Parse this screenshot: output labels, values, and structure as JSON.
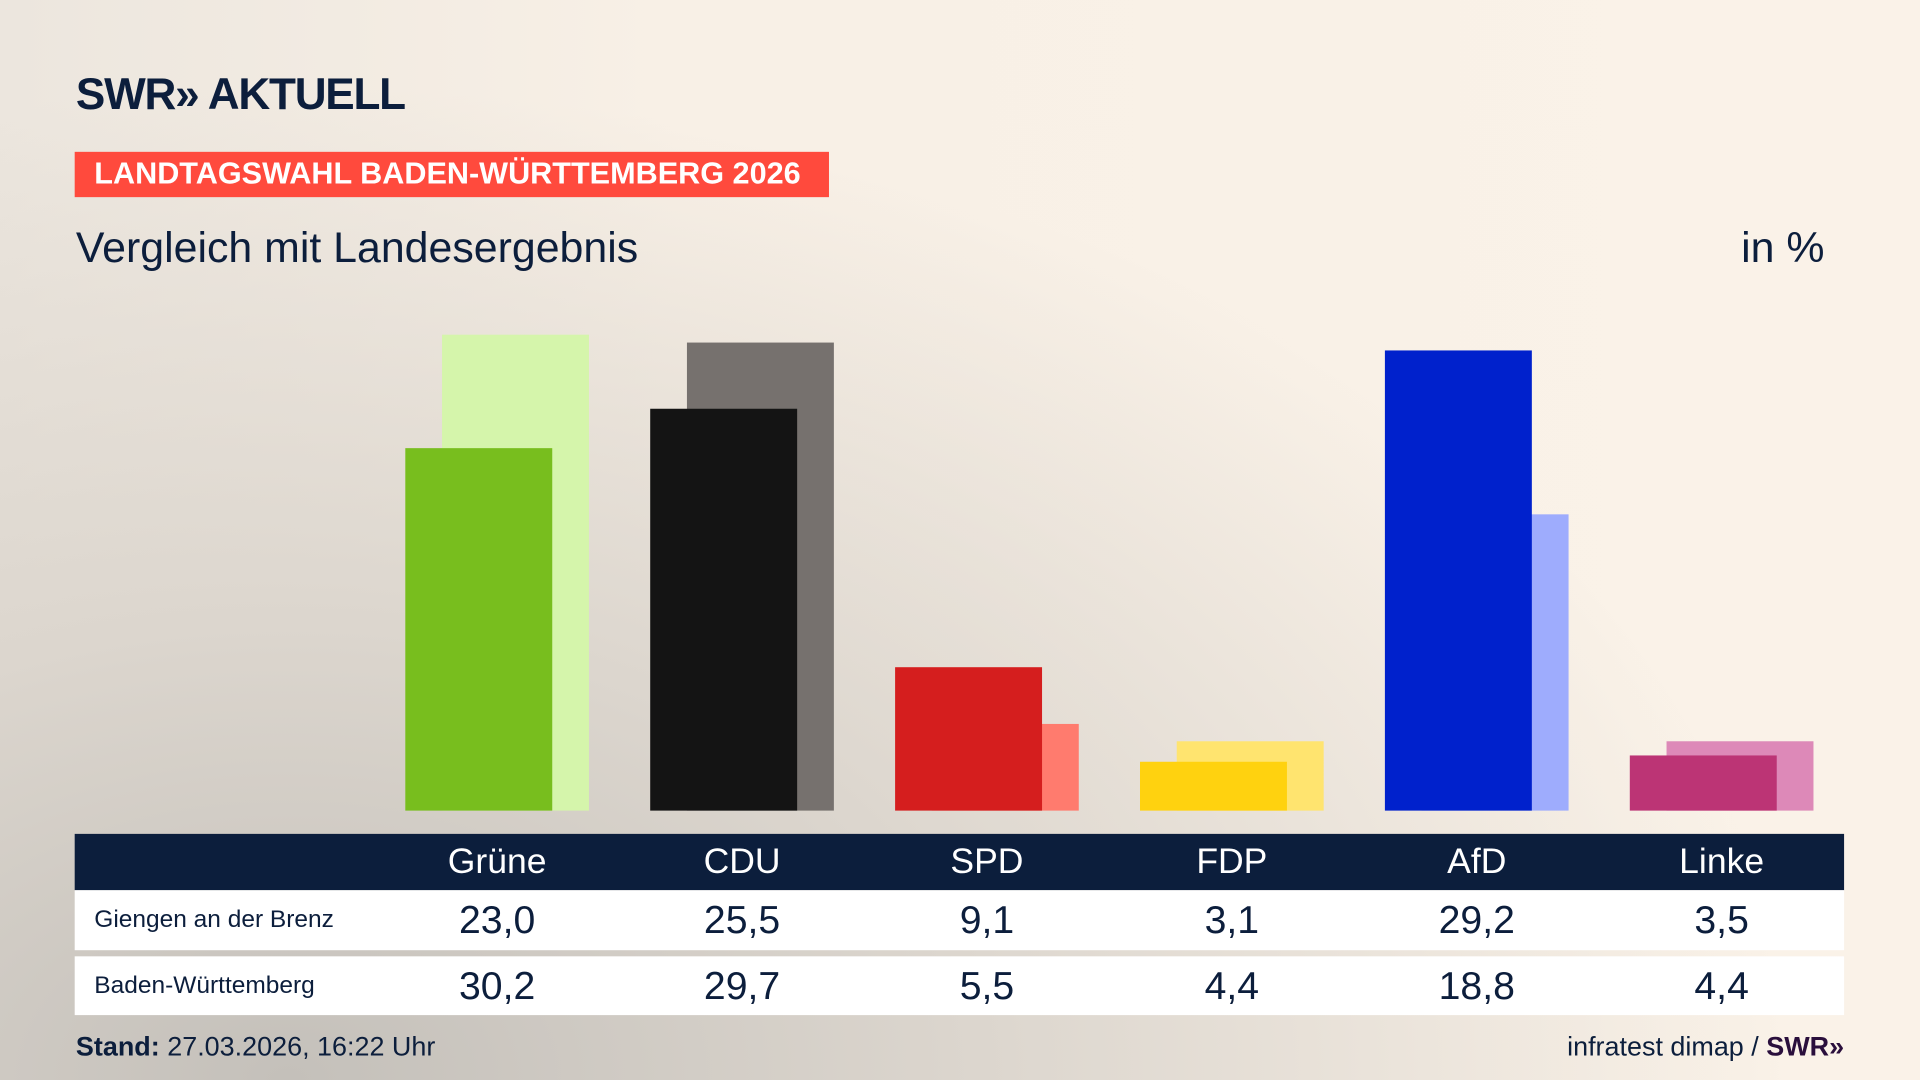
{
  "header": {
    "logo": "SWR» AKTUELL",
    "badge": "LANDTAGSWAHL BADEN-WÜRTTEMBERG 2026",
    "subtitle": "Vergleich mit Landesergebnis",
    "unit": "in %"
  },
  "chart_data": {
    "type": "bar",
    "categories": [
      "Grüne",
      "CDU",
      "SPD",
      "FDP",
      "AfD",
      "Linke"
    ],
    "series": [
      {
        "name": "Giengen an der Brenz",
        "values": [
          23.0,
          25.5,
          9.1,
          3.1,
          29.2,
          3.5
        ],
        "display": [
          "23,0",
          "25,5",
          "9,1",
          "3,1",
          "29,2",
          "3,5"
        ],
        "colors": [
          "#78be1e",
          "#141414",
          "#d51e1e",
          "#ffd20f",
          "#0021cc",
          "#bc3475"
        ]
      },
      {
        "name": "Baden-Württemberg",
        "values": [
          30.2,
          29.7,
          5.5,
          4.4,
          18.8,
          4.4
        ],
        "display": [
          "30,2",
          "29,7",
          "5,5",
          "4,4",
          "18,8",
          "4,4"
        ],
        "colors": [
          "#d5f5ab",
          "#76716e",
          "#ff7b6e",
          "#ffe46f",
          "#9eacfd",
          "#dd89b8"
        ]
      }
    ],
    "ylim": [
      0,
      31
    ],
    "grid": false
  },
  "footer": {
    "stand_label": "Stand:",
    "stand_value": "27.03.2026, 16:22 Uhr",
    "source": "infratest dimap /",
    "source_logo": "SWR»"
  }
}
